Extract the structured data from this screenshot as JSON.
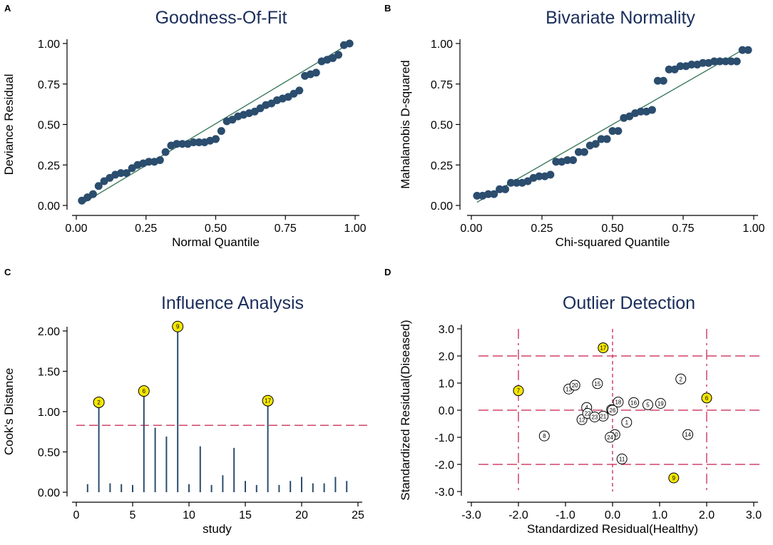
{
  "chart_data": [
    {
      "panel": "A",
      "type": "scatter",
      "title": "Goodness-Of-Fit",
      "xlabel": "Normal Quantile",
      "ylabel": "Deviance Residual",
      "xlim": [
        0,
        1
      ],
      "ylim": [
        0,
        1
      ],
      "xticks": [
        "0.00",
        "0.25",
        "0.50",
        "0.75",
        "1.00"
      ],
      "yticks": [
        "0.00",
        "0.25",
        "0.50",
        "0.75",
        "1.00"
      ],
      "marker_color": "#2b4d6e",
      "line_color": "#3f7a5e",
      "fit_line": [
        [
          0.02,
          0.01
        ],
        [
          0.98,
          1.0
        ]
      ],
      "x": [
        0.02,
        0.04,
        0.06,
        0.08,
        0.1,
        0.12,
        0.14,
        0.16,
        0.18,
        0.2,
        0.22,
        0.24,
        0.26,
        0.28,
        0.3,
        0.32,
        0.34,
        0.36,
        0.38,
        0.4,
        0.42,
        0.44,
        0.46,
        0.48,
        0.5,
        0.52,
        0.54,
        0.56,
        0.58,
        0.6,
        0.62,
        0.64,
        0.66,
        0.68,
        0.7,
        0.72,
        0.74,
        0.76,
        0.78,
        0.8,
        0.82,
        0.84,
        0.86,
        0.88,
        0.9,
        0.92,
        0.94,
        0.96,
        0.98
      ],
      "y": [
        0.03,
        0.05,
        0.07,
        0.12,
        0.15,
        0.17,
        0.19,
        0.2,
        0.2,
        0.23,
        0.25,
        0.26,
        0.27,
        0.27,
        0.28,
        0.33,
        0.37,
        0.38,
        0.38,
        0.38,
        0.39,
        0.39,
        0.39,
        0.4,
        0.41,
        0.46,
        0.52,
        0.53,
        0.55,
        0.56,
        0.57,
        0.58,
        0.6,
        0.62,
        0.63,
        0.65,
        0.66,
        0.67,
        0.69,
        0.71,
        0.8,
        0.81,
        0.82,
        0.89,
        0.9,
        0.91,
        0.93,
        0.99,
        1.0
      ]
    },
    {
      "panel": "B",
      "type": "scatter",
      "title": "Bivariate Normality",
      "xlabel": "Chi-squared Quantile",
      "ylabel": "Mahalanobis D-squared",
      "xlim": [
        0,
        1
      ],
      "ylim": [
        0,
        1
      ],
      "xticks": [
        "0.00",
        "0.25",
        "0.50",
        "0.75",
        "1.00"
      ],
      "yticks": [
        "0.00",
        "0.25",
        "0.50",
        "0.75",
        "1.00"
      ],
      "marker_color": "#2b4d6e",
      "line_color": "#3f7a5e",
      "fit_line": [
        [
          0.02,
          0.02
        ],
        [
          0.98,
          0.98
        ]
      ],
      "x": [
        0.02,
        0.04,
        0.06,
        0.08,
        0.1,
        0.12,
        0.14,
        0.16,
        0.18,
        0.2,
        0.22,
        0.24,
        0.26,
        0.28,
        0.3,
        0.32,
        0.34,
        0.36,
        0.38,
        0.4,
        0.42,
        0.44,
        0.46,
        0.48,
        0.5,
        0.52,
        0.54,
        0.56,
        0.58,
        0.6,
        0.62,
        0.64,
        0.66,
        0.68,
        0.7,
        0.72,
        0.74,
        0.76,
        0.78,
        0.8,
        0.82,
        0.84,
        0.86,
        0.88,
        0.9,
        0.92,
        0.94,
        0.96,
        0.98
      ],
      "y": [
        0.06,
        0.06,
        0.07,
        0.07,
        0.1,
        0.1,
        0.14,
        0.14,
        0.14,
        0.15,
        0.17,
        0.18,
        0.18,
        0.19,
        0.27,
        0.27,
        0.28,
        0.28,
        0.33,
        0.33,
        0.37,
        0.38,
        0.41,
        0.41,
        0.46,
        0.46,
        0.54,
        0.55,
        0.57,
        0.58,
        0.58,
        0.59,
        0.77,
        0.77,
        0.84,
        0.84,
        0.86,
        0.86,
        0.87,
        0.87,
        0.88,
        0.88,
        0.89,
        0.89,
        0.89,
        0.89,
        0.89,
        0.96,
        0.96
      ]
    },
    {
      "panel": "C",
      "type": "bar",
      "title": "Influence Analysis",
      "xlabel": "study",
      "ylabel": "Cook's Distance",
      "xlim": [
        0,
        25
      ],
      "ylim": [
        0,
        2
      ],
      "xticks": [
        "0",
        "5",
        "10",
        "15",
        "20",
        "25"
      ],
      "yticks": [
        "0.00",
        "0.50",
        "1.00",
        "1.50",
        "2.00"
      ],
      "threshold": 0.83,
      "bar_color": "#2b4d6e",
      "threshold_color": "#d0436a",
      "highlight_color": "#f5e600",
      "x": [
        1,
        2,
        3,
        4,
        5,
        6,
        7,
        8,
        9,
        10,
        11,
        12,
        13,
        14,
        15,
        16,
        17,
        18,
        19,
        20,
        21,
        22,
        23,
        24
      ],
      "values": [
        0.1,
        1.08,
        0.11,
        0.1,
        0.09,
        1.22,
        0.8,
        0.69,
        2.02,
        0.1,
        0.57,
        0.09,
        0.21,
        0.55,
        0.14,
        0.09,
        1.1,
        0.09,
        0.14,
        0.19,
        0.11,
        0.11,
        0.19,
        0.14
      ],
      "highlighted": [
        {
          "study": 2,
          "label": "2"
        },
        {
          "study": 6,
          "label": "6"
        },
        {
          "study": 9,
          "label": "9"
        },
        {
          "study": 17,
          "label": "17"
        }
      ]
    },
    {
      "panel": "D",
      "type": "scatter",
      "title": "Outlier Detection",
      "xlabel": "Standardized Residual(Healthy)",
      "ylabel": "Standardized Residual(Diseased)",
      "xlim": [
        -3,
        3
      ],
      "ylim": [
        -3,
        3
      ],
      "xticks": [
        "-3.0",
        "-2.0",
        "-1.0",
        "0.0",
        "1.0",
        "2.0",
        "3.0"
      ],
      "yticks": [
        "-3.0",
        "-2.0",
        "-1.0",
        "0.0",
        "1.0",
        "2.0",
        "3.0"
      ],
      "ref_lines_x": [
        -2,
        0,
        2
      ],
      "ref_lines_y": [
        -2,
        0,
        2
      ],
      "ref_color": "#d0436a",
      "highlight_color": "#f5e600",
      "points": [
        {
          "label": "1",
          "x": 0.3,
          "y": -0.45,
          "outlier": false
        },
        {
          "label": "2",
          "x": 1.45,
          "y": 1.15,
          "outlier": false
        },
        {
          "label": "4",
          "x": -0.55,
          "y": 0.1,
          "outlier": false
        },
        {
          "label": "5",
          "x": 0.75,
          "y": 0.2,
          "outlier": false
        },
        {
          "label": "6",
          "x": 2.0,
          "y": 0.45,
          "outlier": true
        },
        {
          "label": "7",
          "x": -2.0,
          "y": 0.72,
          "outlier": true
        },
        {
          "label": "8",
          "x": -1.45,
          "y": -0.95,
          "outlier": false
        },
        {
          "label": "9",
          "x": 1.3,
          "y": -2.5,
          "outlier": true
        },
        {
          "label": "10",
          "x": 0.05,
          "y": -0.9,
          "outlier": false
        },
        {
          "label": "11",
          "x": 0.2,
          "y": -1.8,
          "outlier": false
        },
        {
          "label": "12",
          "x": -0.65,
          "y": -0.35,
          "outlier": false
        },
        {
          "label": "13",
          "x": -0.93,
          "y": 0.78,
          "outlier": false
        },
        {
          "label": "14",
          "x": 1.6,
          "y": -0.9,
          "outlier": false
        },
        {
          "label": "15",
          "x": -0.32,
          "y": 0.98,
          "outlier": false
        },
        {
          "label": "16",
          "x": 0.45,
          "y": 0.28,
          "outlier": false
        },
        {
          "label": "17",
          "x": -0.2,
          "y": 2.3,
          "outlier": true
        },
        {
          "label": "18",
          "x": 0.12,
          "y": 0.3,
          "outlier": false
        },
        {
          "label": "19",
          "x": 1.02,
          "y": 0.25,
          "outlier": false
        },
        {
          "label": "20",
          "x": -0.8,
          "y": 0.92,
          "outlier": false
        },
        {
          "label": "21",
          "x": -0.2,
          "y": -0.22,
          "outlier": false
        },
        {
          "label": "22",
          "x": -0.53,
          "y": -0.12,
          "outlier": false
        },
        {
          "label": "23",
          "x": -0.38,
          "y": -0.25,
          "outlier": false
        },
        {
          "label": "24",
          "x": -0.05,
          "y": -1.0,
          "outlier": false
        },
        {
          "label": "25",
          "x": -0.02,
          "y": 0.02,
          "outlier": false
        },
        {
          "label": "26",
          "x": 0.0,
          "y": 0.0,
          "outlier": false
        }
      ]
    }
  ]
}
